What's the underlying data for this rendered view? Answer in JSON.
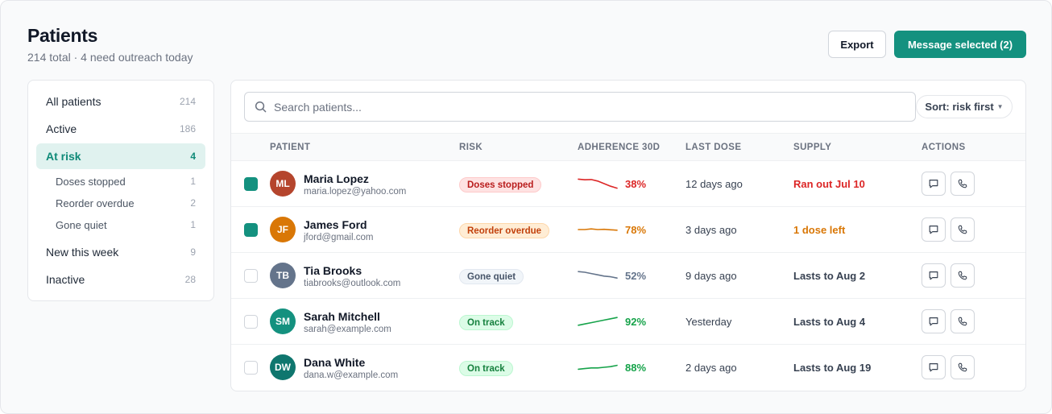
{
  "header": {
    "title": "Patients",
    "subtitle": "214 total · 4 need outreach today",
    "export_label": "Export",
    "message_label": "Message selected (2)"
  },
  "sidebar": {
    "items": [
      {
        "label": "All patients",
        "count": "214"
      },
      {
        "label": "Active",
        "count": "186"
      },
      {
        "label": "At risk",
        "count": "4",
        "active": true
      },
      {
        "label": "Doses stopped",
        "count": "1",
        "sub": true
      },
      {
        "label": "Reorder overdue",
        "count": "2",
        "sub": true
      },
      {
        "label": "Gone quiet",
        "count": "1",
        "sub": true
      },
      {
        "label": "New this week",
        "count": "9"
      },
      {
        "label": "Inactive",
        "count": "28"
      }
    ]
  },
  "search": {
    "placeholder": "Search patients...",
    "value": ""
  },
  "sort": {
    "label": "Sort: risk first",
    "icon": "caret-down-icon"
  },
  "table": {
    "columns": [
      "PATIENT",
      "RISK",
      "ADHERENCE 30D",
      "LAST DOSE",
      "SUPPLY",
      "ACTIONS"
    ],
    "rows": [
      {
        "checked": true,
        "initials": "ML",
        "avatar_color": "#b5452d",
        "name": "Maria Lopez",
        "email": "maria.lopez@yahoo.com",
        "risk": "Doses stopped",
        "risk_style": "danger",
        "adherence": "38%",
        "adherence_color": "#dc2626",
        "trend": [
          0.85,
          0.8,
          0.82,
          0.7,
          0.5,
          0.3,
          0.15
        ],
        "last_dose": "12 days ago",
        "supply": "Ran out Jul 10",
        "supply_color": "#dc2626"
      },
      {
        "checked": true,
        "initials": "JF",
        "avatar_color": "#d97706",
        "name": "James Ford",
        "email": "jford@gmail.com",
        "risk": "Reorder overdue",
        "risk_style": "warning",
        "adherence": "78%",
        "adherence_color": "#d97706",
        "trend": [
          0.5,
          0.5,
          0.55,
          0.5,
          0.52,
          0.48,
          0.45
        ],
        "last_dose": "3 days ago",
        "supply": "1 dose left",
        "supply_color": "#d97706"
      },
      {
        "checked": false,
        "initials": "TB",
        "avatar_color": "#64748b",
        "name": "Tia Brooks",
        "email": "tiabrooks@outlook.com",
        "risk": "Gone quiet",
        "risk_style": "neutral",
        "adherence": "52%",
        "adherence_color": "#64748b",
        "trend": [
          0.8,
          0.75,
          0.65,
          0.55,
          0.45,
          0.4,
          0.3
        ],
        "last_dose": "9 days ago",
        "supply": "Lasts to Aug 2",
        "supply_color": "#374151"
      },
      {
        "checked": false,
        "initials": "SM",
        "avatar_color": "#14917f",
        "name": "Sarah Mitchell",
        "email": "sarah@example.com",
        "risk": "On track",
        "risk_style": "success",
        "adherence": "92%",
        "adherence_color": "#16a34a",
        "trend": [
          0.2,
          0.3,
          0.4,
          0.5,
          0.6,
          0.7,
          0.8
        ],
        "last_dose": "Yesterday",
        "supply": "Lasts to Aug 4",
        "supply_color": "#374151"
      },
      {
        "checked": false,
        "initials": "DW",
        "avatar_color": "#0f766e",
        "name": "Dana White",
        "email": "dana.w@example.com",
        "risk": "On track",
        "risk_style": "success",
        "adherence": "88%",
        "adherence_color": "#16a34a",
        "trend": [
          0.35,
          0.4,
          0.45,
          0.45,
          0.5,
          0.55,
          0.65
        ],
        "last_dose": "2 days ago",
        "supply": "Lasts to Aug 19",
        "supply_color": "#374151"
      }
    ]
  },
  "icons": {
    "search": "search-icon",
    "message": "message-icon",
    "phone": "phone-icon"
  },
  "colors": {
    "accent": "#14917f",
    "danger_bg": "#fee2e2",
    "danger_fg": "#b91c1c",
    "danger_border": "#fecaca",
    "warning_bg": "#ffedd5",
    "warning_fg": "#c2410c",
    "warning_border": "#fed7aa",
    "neutral_bg": "#f1f5f9",
    "neutral_fg": "#475569",
    "neutral_border": "#e2e8f0",
    "success_bg": "#dcfce7",
    "success_fg": "#15803d",
    "success_border": "#bbf7d0"
  }
}
